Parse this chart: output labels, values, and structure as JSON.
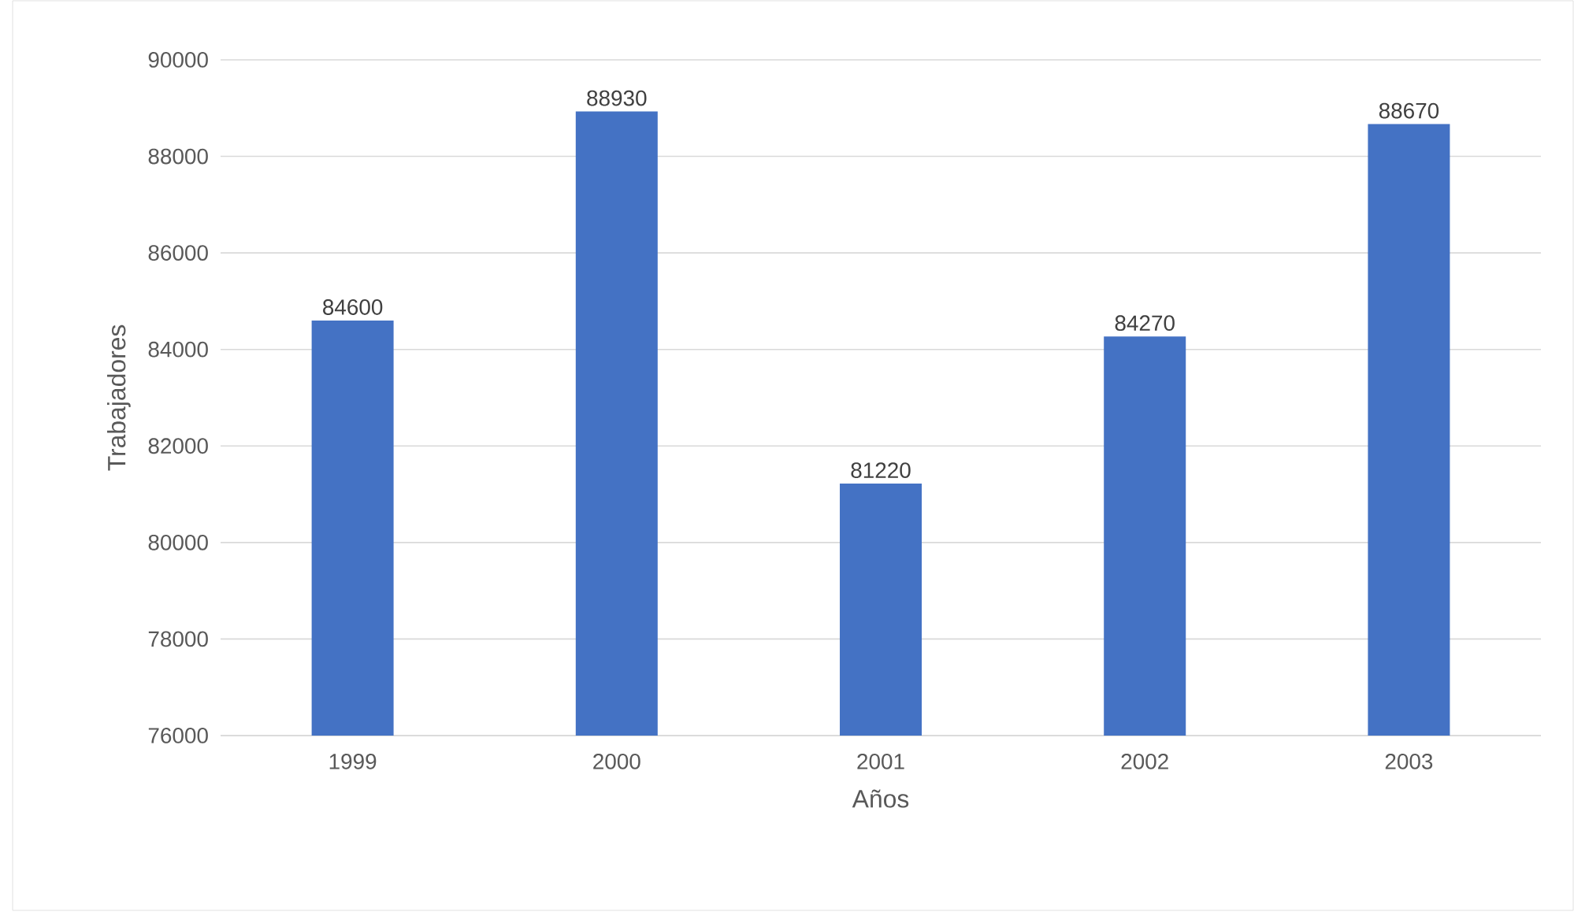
{
  "chart_data": {
    "type": "bar",
    "xlabel": "Años",
    "ylabel": "Trabajadores",
    "categories": [
      "1999",
      "2000",
      "2001",
      "2002",
      "2003"
    ],
    "values": [
      84600,
      88930,
      81220,
      84270,
      88670
    ],
    "color": "#4472c4",
    "ylim": [
      76000,
      90000
    ],
    "yticks": [
      76000,
      78000,
      80000,
      82000,
      84000,
      86000,
      88000,
      90000
    ],
    "grid": "y",
    "data_labels": true
  }
}
